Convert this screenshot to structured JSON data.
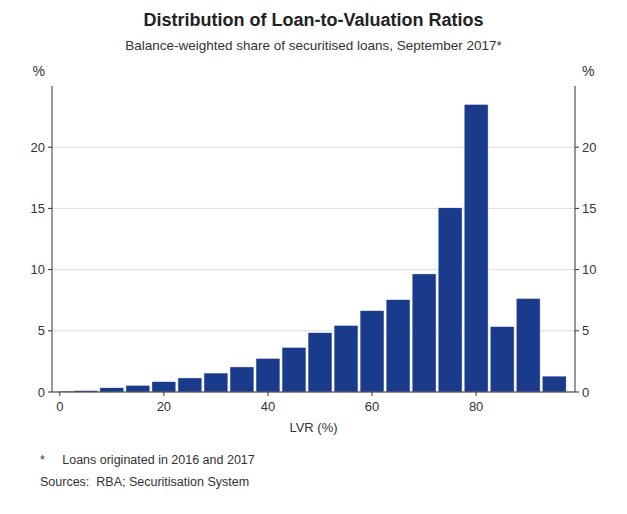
{
  "chart_data": {
    "type": "bar",
    "title": "Distribution of Loan-to-Valuation Ratios",
    "subtitle": "Balance-weighted share of securitised loans, September 2017*",
    "xlabel": "LVR (%)",
    "ylabel": "%",
    "y2label": "%",
    "x": [
      2,
      5,
      10,
      15,
      20,
      25,
      30,
      35,
      40,
      45,
      50,
      55,
      60,
      65,
      70,
      75,
      80,
      85,
      90,
      95
    ],
    "values": [
      0.08,
      0.12,
      0.35,
      0.55,
      0.85,
      1.15,
      1.55,
      2.05,
      2.75,
      3.65,
      4.85,
      5.45,
      6.65,
      7.55,
      9.65,
      15.05,
      23.5,
      5.35,
      7.65,
      1.3
    ],
    "color": "#1a3a8c",
    "xlim": [
      -1.5,
      99
    ],
    "xticks": [
      0,
      20,
      40,
      60,
      80
    ],
    "ylim": [
      0,
      25
    ],
    "yticks": [
      0,
      5,
      10,
      15,
      20
    ],
    "y2lim": [
      0,
      25
    ],
    "y2ticks": [
      0,
      5,
      10,
      15,
      20
    ],
    "grid": true,
    "annotations": [
      "*     Loans originated in 2016 and 2017",
      "Sources:  RBA; Securitisation System"
    ]
  }
}
